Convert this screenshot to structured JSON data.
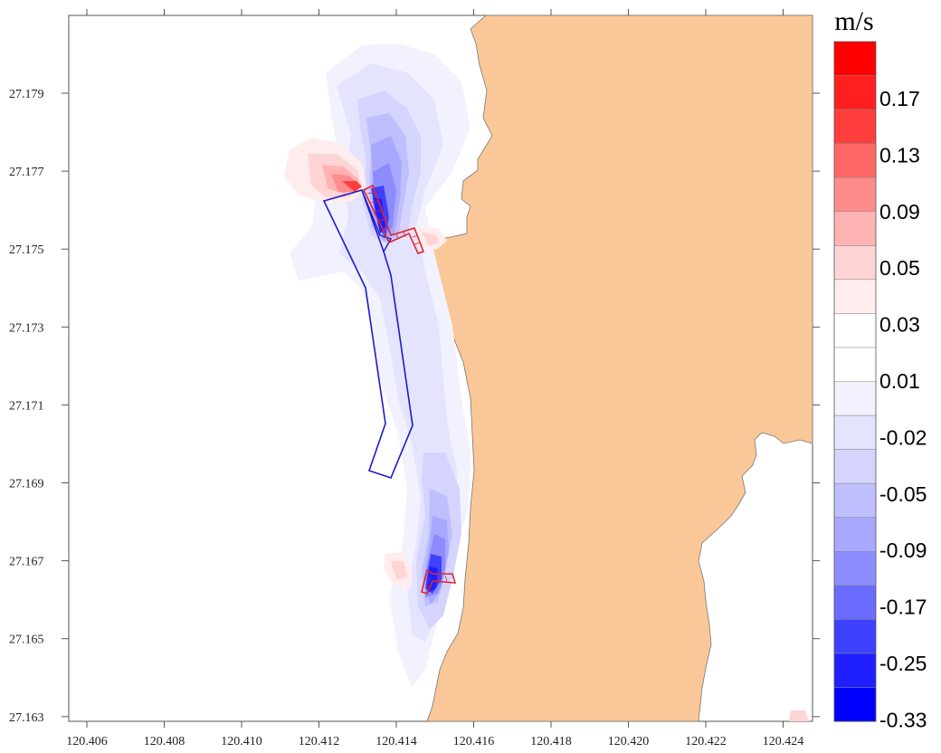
{
  "map": {
    "x_ticks": [
      "120.406",
      "120.408",
      "120.410",
      "120.412",
      "120.414",
      "120.416",
      "120.418",
      "120.420",
      "120.422",
      "120.424"
    ],
    "y_ticks": [
      "27.179",
      "27.177",
      "27.175",
      "27.173",
      "27.171",
      "27.169",
      "27.167",
      "27.165",
      "27.163"
    ],
    "land_color": "#FAC898",
    "water_color": "#FFFFFF",
    "outline_color": "#1B1BCC",
    "structure_color": "#E0262B"
  },
  "legend": {
    "unit": "m/s",
    "labels": [
      "0.17",
      "0.13",
      "0.09",
      "0.05",
      "0.03",
      "0.01",
      "-0.02",
      "-0.05",
      "-0.09",
      "-0.17",
      "-0.25",
      "-0.33"
    ],
    "colors": [
      "#FF0000",
      "#FF1F1F",
      "#FF3D3D",
      "#FF6666",
      "#FF8C8C",
      "#FFB3B3",
      "#FFD4D4",
      "#FFEDED",
      "#FFFFFF",
      "#FFFFFF",
      "#F2F2FF",
      "#E4E4FF",
      "#D4D4FF",
      "#BFBFFF",
      "#A8A8FF",
      "#8C8CFF",
      "#6B6BFF",
      "#4040FF",
      "#1F1FFF",
      "#0000FF"
    ]
  }
}
